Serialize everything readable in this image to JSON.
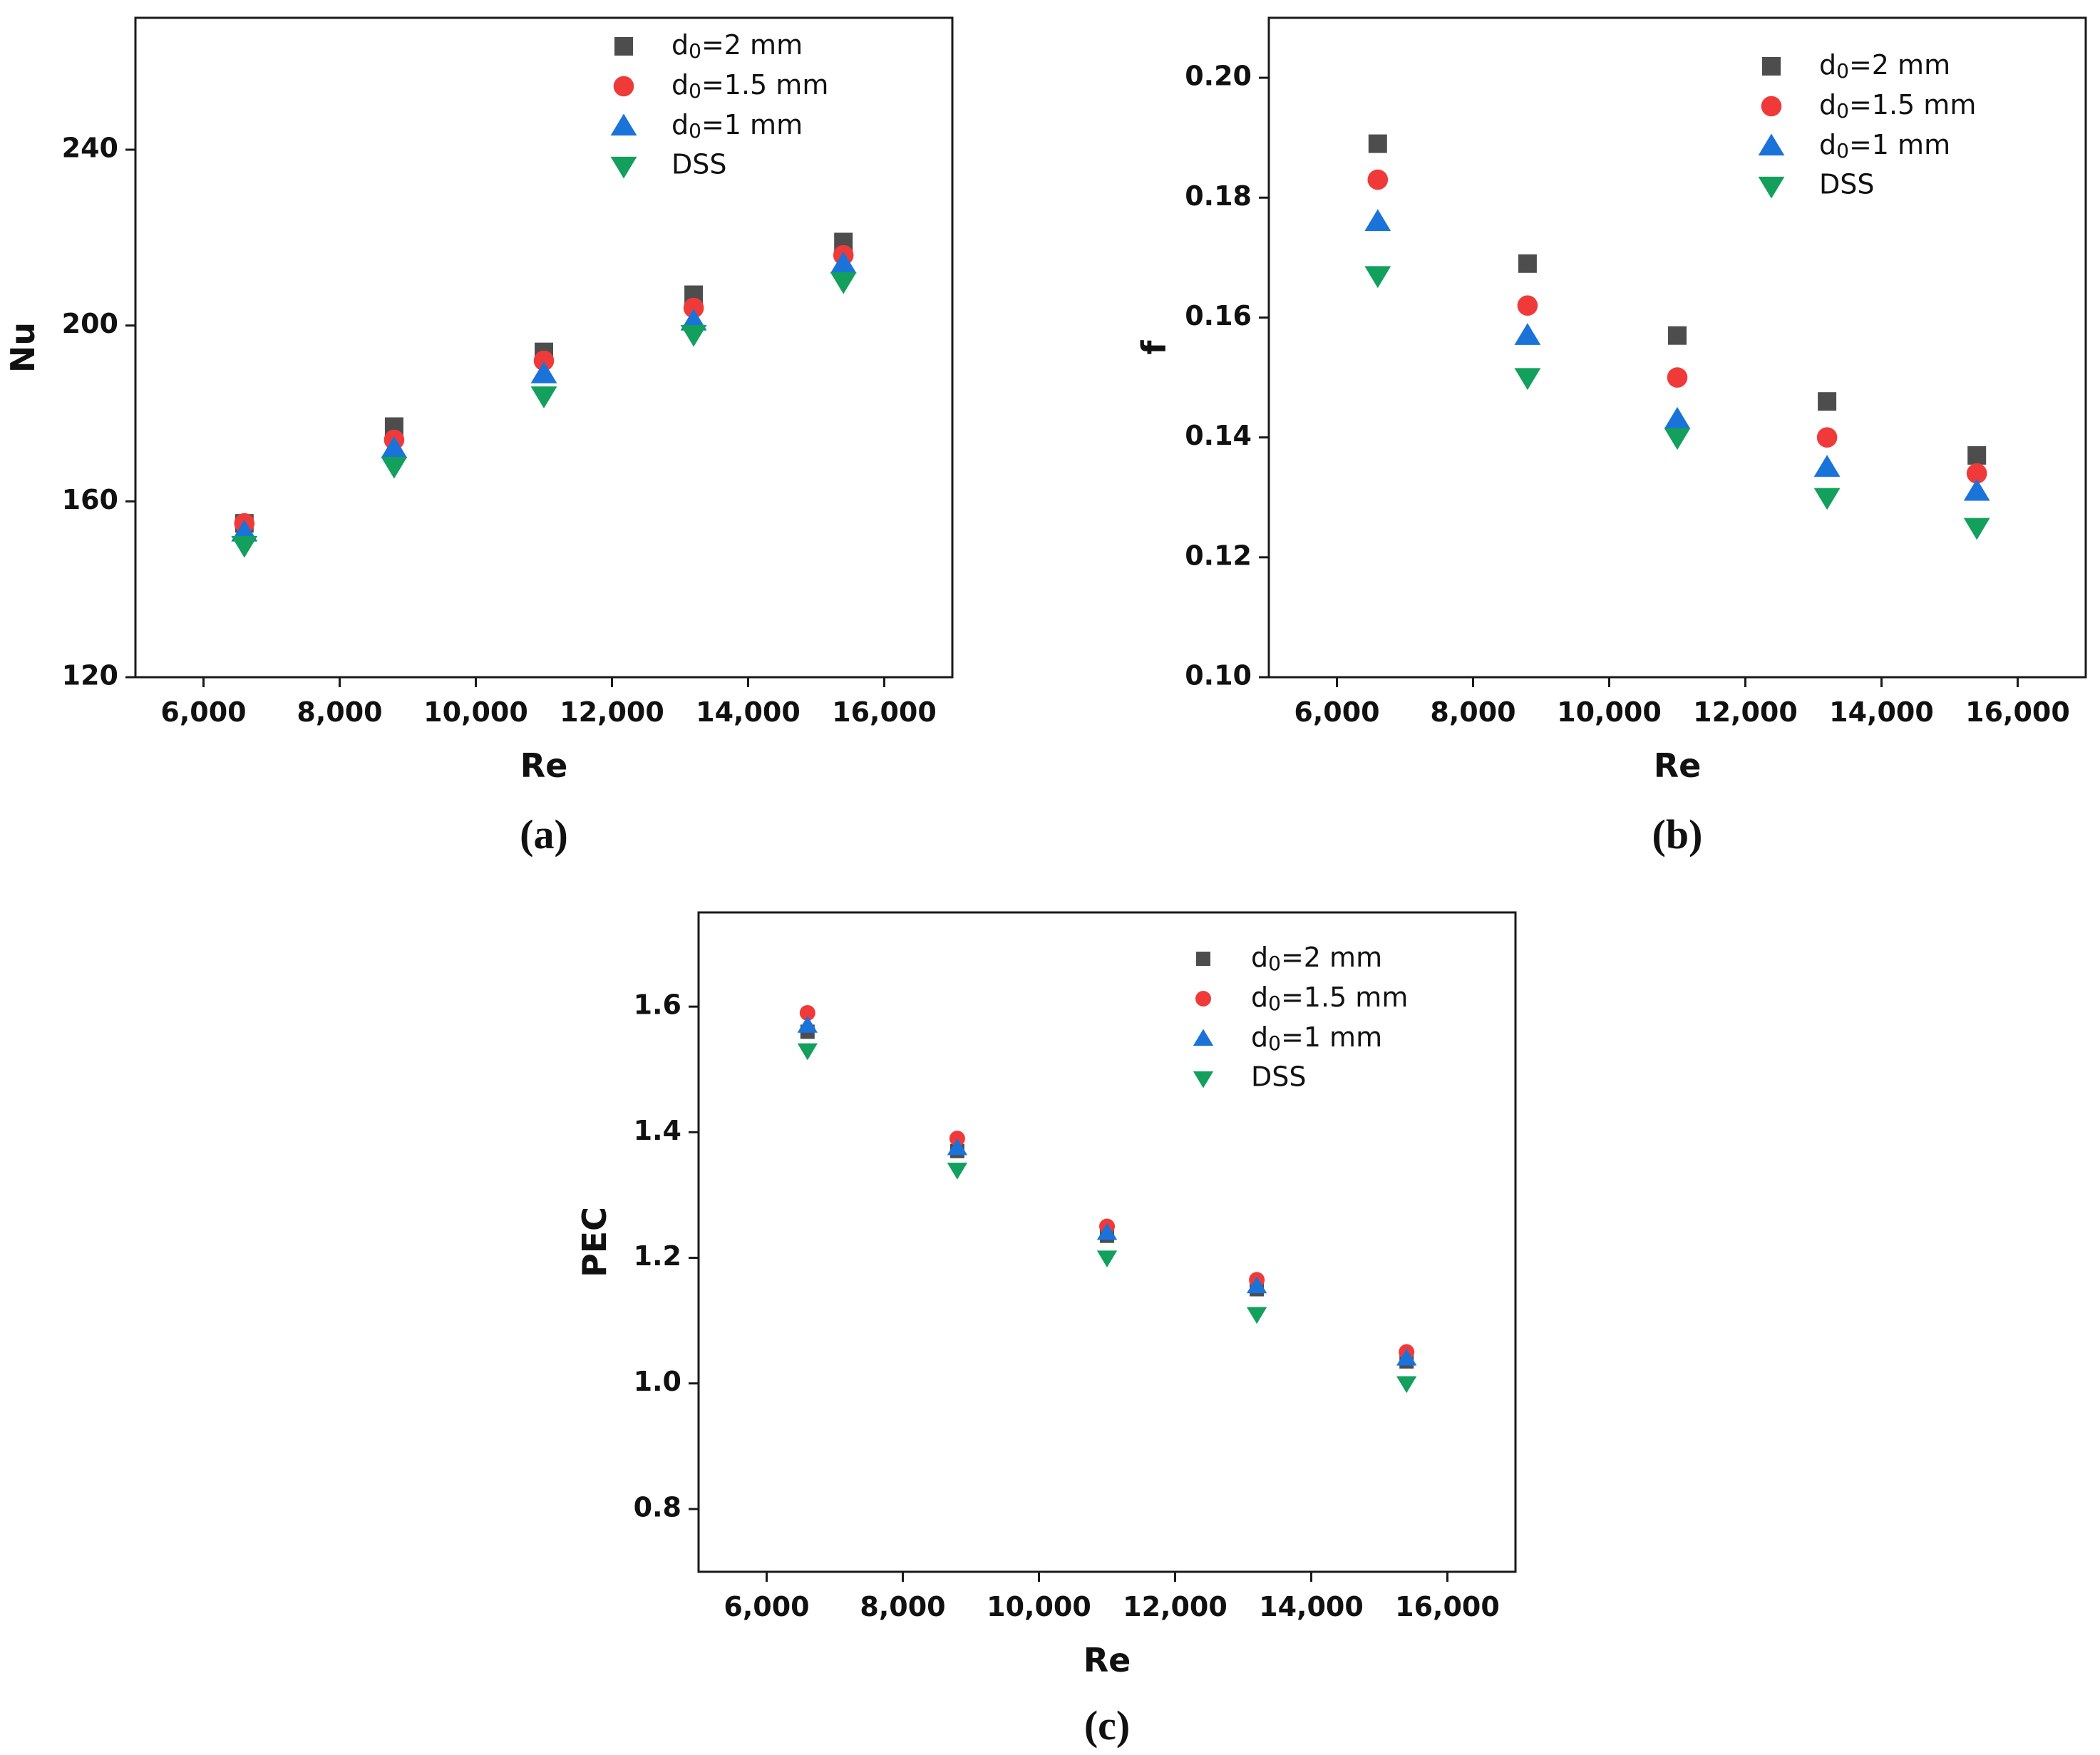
{
  "colors": {
    "d0_2mm": "#4d4d4d",
    "d0_1_5mm": "#f03a3a",
    "d0_1mm": "#1a73d9",
    "DSS": "#12a05c"
  },
  "legend": [
    "d0=2 mm",
    "d0=1.5 mm",
    "d0=1 mm",
    "DSS"
  ],
  "chart_data": [
    {
      "panel_label": "(a)",
      "type": "scatter",
      "xlabel": "Re",
      "ylabel": "Nu",
      "xlim": [
        5000,
        17000
      ],
      "ylim": [
        120,
        270
      ],
      "xticks": [
        6000,
        8000,
        10000,
        12000,
        14000,
        16000
      ],
      "xtick_labels": [
        "6,000",
        "8,000",
        "10,000",
        "12,000",
        "14,000",
        "16,000"
      ],
      "yticks": [
        120,
        160,
        200,
        240
      ],
      "ytick_labels": [
        "120",
        "160",
        "200",
        "240"
      ],
      "legend_position": "top-right",
      "x": [
        6600,
        8800,
        11000,
        13200,
        15400
      ],
      "series": [
        {
          "name": "d0=2 mm",
          "marker": "square",
          "values": [
            155,
            177,
            194,
            207,
            219
          ]
        },
        {
          "name": "d0=1.5 mm",
          "marker": "circle",
          "values": [
            155,
            174,
            192,
            204,
            216
          ]
        },
        {
          "name": "d0=1 mm",
          "marker": "triangle-up",
          "values": [
            153,
            172,
            189,
            201,
            214
          ]
        },
        {
          "name": "DSS",
          "marker": "triangle-down",
          "values": [
            150,
            168,
            184,
            198,
            210
          ]
        }
      ]
    },
    {
      "panel_label": "(b)",
      "type": "scatter",
      "xlabel": "Re",
      "ylabel": "f",
      "xlim": [
        5000,
        17000
      ],
      "ylim": [
        0.1,
        0.21
      ],
      "xticks": [
        6000,
        8000,
        10000,
        12000,
        14000,
        16000
      ],
      "xtick_labels": [
        "6,000",
        "8,000",
        "10,000",
        "12,000",
        "14,000",
        "16,000"
      ],
      "yticks": [
        0.1,
        0.12,
        0.14,
        0.16,
        0.18,
        0.2
      ],
      "ytick_labels": [
        "0.10",
        "0.12",
        "0.14",
        "0.16",
        "0.18",
        "0.20"
      ],
      "legend_position": "top-right",
      "x": [
        6600,
        8800,
        11000,
        13200,
        15400
      ],
      "series": [
        {
          "name": "d0=2 mm",
          "marker": "square",
          "values": [
            0.189,
            0.169,
            0.157,
            0.146,
            0.137
          ]
        },
        {
          "name": "d0=1.5 mm",
          "marker": "circle",
          "values": [
            0.183,
            0.162,
            0.15,
            0.14,
            0.134
          ]
        },
        {
          "name": "d0=1 mm",
          "marker": "triangle-up",
          "values": [
            0.176,
            0.157,
            0.143,
            0.135,
            0.131
          ]
        },
        {
          "name": "DSS",
          "marker": "triangle-down",
          "values": [
            0.167,
            0.15,
            0.14,
            0.13,
            0.125
          ]
        }
      ]
    },
    {
      "panel_label": "(c)",
      "type": "scatter",
      "xlabel": "Re",
      "ylabel": "PEC",
      "xlim": [
        5000,
        17000
      ],
      "ylim": [
        0.7,
        1.75
      ],
      "xticks": [
        6000,
        8000,
        10000,
        12000,
        14000,
        16000
      ],
      "xtick_labels": [
        "6,000",
        "8,000",
        "10,000",
        "12,000",
        "14,000",
        "16,000"
      ],
      "yticks": [
        0.8,
        1.0,
        1.2,
        1.4,
        1.6
      ],
      "ytick_labels": [
        "0.8",
        "1.0",
        "1.2",
        "1.4",
        "1.6"
      ],
      "legend_position": "top-right",
      "x": [
        6600,
        8800,
        11000,
        13200,
        15400
      ],
      "series": [
        {
          "name": "d0=2 mm",
          "marker": "square",
          "values": [
            1.56,
            1.37,
            1.235,
            1.15,
            1.035
          ]
        },
        {
          "name": "d0=1.5 mm",
          "marker": "circle",
          "values": [
            1.59,
            1.39,
            1.25,
            1.165,
            1.05
          ]
        },
        {
          "name": "d0=1 mm",
          "marker": "triangle-up",
          "values": [
            1.57,
            1.375,
            1.24,
            1.155,
            1.04
          ]
        },
        {
          "name": "DSS",
          "marker": "triangle-down",
          "values": [
            1.53,
            1.34,
            1.2,
            1.11,
            1.0
          ]
        }
      ]
    }
  ]
}
